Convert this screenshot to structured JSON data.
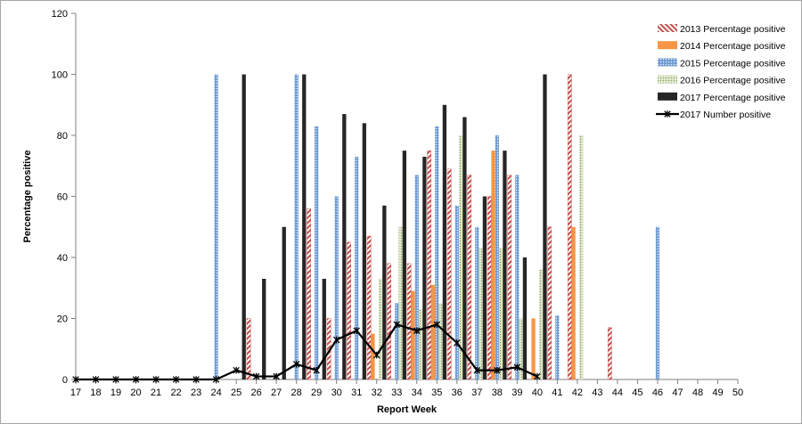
{
  "chart_data": {
    "type": "bar",
    "title": "",
    "xlabel": "Report Week",
    "ylabel": "Percentage positive",
    "ylim": [
      0,
      120
    ],
    "yticks": [
      0,
      20,
      40,
      60,
      80,
      100,
      120
    ],
    "categories": [
      "17",
      "18",
      "19",
      "20",
      "21",
      "22",
      "23",
      "24",
      "25",
      "26",
      "27",
      "28",
      "29",
      "30",
      "31",
      "32",
      "33",
      "34",
      "35",
      "36",
      "37",
      "38",
      "39",
      "40",
      "41",
      "42",
      "43",
      "44",
      "45",
      "46",
      "47",
      "48",
      "49",
      "50"
    ],
    "series": [
      {
        "name": "2013 Percentage positive",
        "kind": "bar",
        "color": "#c0504d",
        "pattern": "hatch",
        "values": [
          null,
          null,
          null,
          null,
          null,
          null,
          null,
          null,
          null,
          20,
          null,
          null,
          56,
          20,
          45,
          47,
          38,
          38,
          75,
          69,
          67,
          60,
          67,
          null,
          50,
          100,
          null,
          17,
          null,
          null,
          null,
          null,
          null,
          null
        ]
      },
      {
        "name": "2014 Percentage positive",
        "kind": "bar",
        "color": "#f79646",
        "pattern": "solid",
        "values": [
          null,
          null,
          null,
          null,
          null,
          null,
          null,
          null,
          null,
          null,
          null,
          null,
          null,
          null,
          null,
          15,
          null,
          29,
          31,
          null,
          null,
          75,
          null,
          20,
          null,
          50,
          null,
          null,
          null,
          null,
          null,
          null,
          null,
          null
        ]
      },
      {
        "name": "2015 Percentage positive",
        "kind": "bar",
        "color": "#4f81bd",
        "pattern": "dots",
        "values": [
          null,
          null,
          null,
          null,
          null,
          null,
          null,
          100,
          null,
          null,
          null,
          100,
          83,
          60,
          73,
          null,
          25,
          67,
          83,
          57,
          50,
          80,
          67,
          null,
          21,
          null,
          null,
          null,
          null,
          50,
          null,
          null,
          null,
          null
        ]
      },
      {
        "name": "2016 Percentage positive",
        "kind": "bar",
        "color": "#9bbb59",
        "pattern": "dots",
        "values": [
          null,
          null,
          null,
          null,
          null,
          null,
          null,
          null,
          null,
          null,
          null,
          null,
          null,
          null,
          null,
          33,
          50,
          23,
          25,
          80,
          43,
          43,
          20,
          36,
          null,
          80,
          null,
          null,
          null,
          null,
          null,
          null,
          null,
          null
        ]
      },
      {
        "name": "2017 Percentage positive",
        "kind": "bar",
        "color": "#262626",
        "pattern": "solid",
        "values": [
          null,
          null,
          null,
          null,
          null,
          null,
          null,
          null,
          100,
          33,
          50,
          100,
          33,
          87,
          84,
          57,
          75,
          73,
          90,
          86,
          60,
          75,
          40,
          100,
          null,
          null,
          null,
          null,
          null,
          null,
          null,
          null,
          null,
          null
        ]
      },
      {
        "name": "2017 Number positive",
        "kind": "line",
        "color": "#000000",
        "values": [
          0,
          0,
          0,
          0,
          0,
          0,
          0,
          0,
          3,
          1,
          1,
          5,
          3,
          13,
          16,
          8,
          18,
          16,
          18,
          12,
          3,
          3,
          4,
          1,
          null,
          null,
          null,
          null,
          null,
          null,
          null,
          null,
          null,
          null
        ]
      }
    ],
    "legend_position": "top-right",
    "grid": false
  }
}
